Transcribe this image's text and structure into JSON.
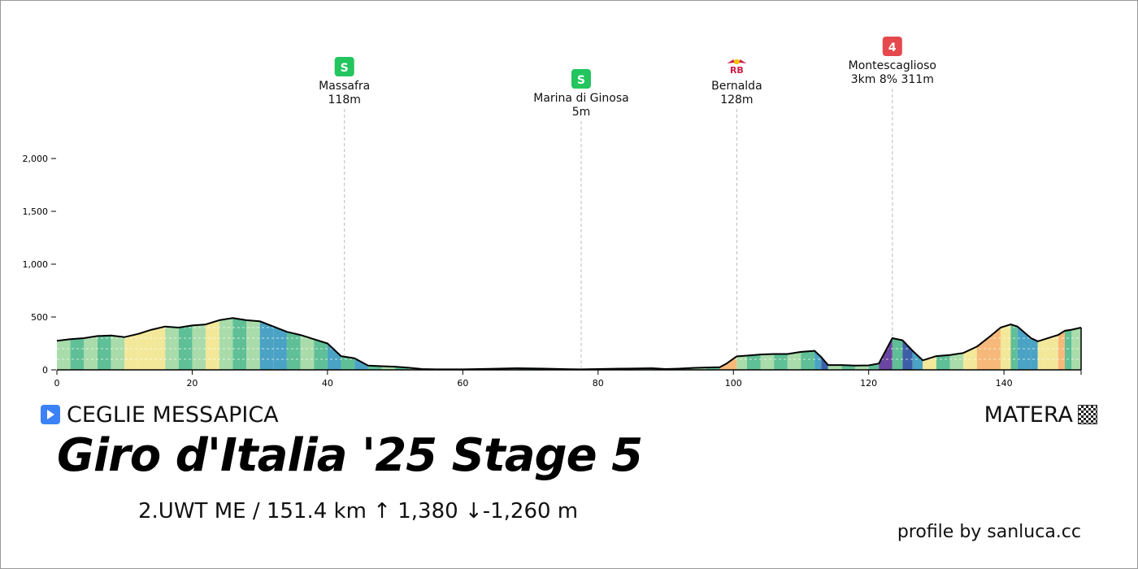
{
  "chart_data": {
    "type": "area",
    "title": "",
    "xlabel": "",
    "ylabel": "",
    "xlim": [
      0,
      151.4
    ],
    "ylim": [
      0,
      2000
    ],
    "x_ticks": [
      0,
      20,
      40,
      60,
      80,
      100,
      120,
      140
    ],
    "x_tick_labels": [
      "0",
      "20",
      "40",
      "60",
      "80",
      "100",
      "120",
      "140"
    ],
    "y_ticks": [
      0,
      500,
      1000,
      1500,
      2000
    ],
    "y_tick_labels": [
      "0",
      "500",
      "1,000",
      "1,500",
      "2,000"
    ],
    "grid": false,
    "profile": [
      [
        0,
        275
      ],
      [
        2,
        290
      ],
      [
        4,
        300
      ],
      [
        6,
        320
      ],
      [
        8,
        325
      ],
      [
        10,
        310
      ],
      [
        12,
        340
      ],
      [
        14,
        380
      ],
      [
        16,
        410
      ],
      [
        18,
        400
      ],
      [
        20,
        420
      ],
      [
        22,
        430
      ],
      [
        24,
        470
      ],
      [
        26,
        490
      ],
      [
        28,
        470
      ],
      [
        30,
        460
      ],
      [
        32,
        410
      ],
      [
        34,
        360
      ],
      [
        36,
        330
      ],
      [
        38,
        290
      ],
      [
        40,
        250
      ],
      [
        42,
        130
      ],
      [
        44,
        110
      ],
      [
        46,
        40
      ],
      [
        48,
        35
      ],
      [
        50,
        30
      ],
      [
        52,
        20
      ],
      [
        54,
        8
      ],
      [
        56,
        5
      ],
      [
        60,
        5
      ],
      [
        64,
        10
      ],
      [
        68,
        15
      ],
      [
        72,
        12
      ],
      [
        76,
        6
      ],
      [
        77.5,
        5
      ],
      [
        80,
        8
      ],
      [
        84,
        12
      ],
      [
        88,
        15
      ],
      [
        90,
        8
      ],
      [
        92,
        12
      ],
      [
        94,
        18
      ],
      [
        96,
        22
      ],
      [
        98,
        25
      ],
      [
        99,
        60
      ],
      [
        100.5,
        128
      ],
      [
        102,
        135
      ],
      [
        104,
        145
      ],
      [
        106,
        150
      ],
      [
        108,
        150
      ],
      [
        110,
        170
      ],
      [
        112,
        180
      ],
      [
        113,
        120
      ],
      [
        114,
        45
      ],
      [
        116,
        45
      ],
      [
        118,
        40
      ],
      [
        120,
        42
      ],
      [
        121.5,
        60
      ],
      [
        123.5,
        300
      ],
      [
        125,
        280
      ],
      [
        126.5,
        180
      ],
      [
        128,
        90
      ],
      [
        130,
        130
      ],
      [
        132,
        140
      ],
      [
        134,
        160
      ],
      [
        136,
        220
      ],
      [
        138,
        320
      ],
      [
        139.5,
        400
      ],
      [
        141,
        430
      ],
      [
        142,
        410
      ],
      [
        144,
        300
      ],
      [
        145,
        270
      ],
      [
        146,
        290
      ],
      [
        148,
        330
      ],
      [
        149,
        370
      ],
      [
        150,
        380
      ],
      [
        151.4,
        400
      ]
    ],
    "pois": [
      {
        "name": "Massafra",
        "detail": "118m",
        "km": 42.5,
        "badge": "S",
        "badge_color": "#22c55e",
        "kind": "sprint"
      },
      {
        "name": "Marina di Ginosa",
        "detail": "5m",
        "km": 77.5,
        "badge": "S",
        "badge_color": "#22c55e",
        "kind": "sprint"
      },
      {
        "name": "Bernalda",
        "detail": "128m",
        "km": 100.5,
        "badge": "RB",
        "badge_color": "#cc1e4a",
        "kind": "red-bull"
      },
      {
        "name": "Montescaglioso",
        "detail": "3km 8% 311m",
        "km": 123.5,
        "badge": "4",
        "badge_color": "#e5484d",
        "kind": "kom"
      }
    ],
    "gradient_colors": {
      "steep_down": "#3d5fa8",
      "down": "#4aa3c4",
      "flat": "#a9dcaa",
      "flat_alt": "#5fbf96",
      "gentle_up": "#f3e89a",
      "up": "#f6b97a",
      "steep_up": "#d93a45",
      "very_steep": "#6a46a0"
    }
  },
  "route": {
    "start": "CEGLIE MESSAPICA",
    "finish": "MATERA"
  },
  "title": "Giro d'Italia '25 Stage 5",
  "subtitle": "2.UWT ME  /  151.4 km   ↑ 1,380  ↓-1,260 m",
  "credit": "profile by sanluca.cc"
}
